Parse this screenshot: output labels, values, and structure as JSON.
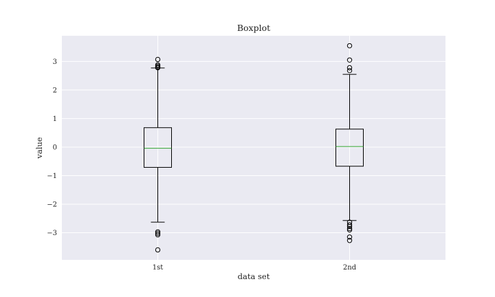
{
  "chart_data": {
    "type": "boxplot",
    "title": "Boxplot",
    "xlabel": "data set",
    "ylabel": "value",
    "categories": [
      "1st",
      "2nd"
    ],
    "ylim": [
      -3.95,
      3.9
    ],
    "yticks": [
      -3,
      -2,
      -1,
      0,
      1,
      2,
      3
    ],
    "ytick_labels": [
      "−3",
      "−2",
      "−1",
      "0",
      "1",
      "2",
      "3"
    ],
    "grid": true,
    "colors": {
      "background": "#eaeaf2",
      "grid": "#ffffff",
      "box": "#000000",
      "median": "#2ca02c"
    },
    "boxes": [
      {
        "label": "1st",
        "whisker_low": -2.63,
        "q1": -0.71,
        "median": -0.04,
        "q3": 0.68,
        "whisker_high": 2.77,
        "outliers": [
          3.07,
          2.88,
          2.84,
          2.8,
          2.78,
          -2.97,
          -3.02,
          -3.07,
          -3.6
        ]
      },
      {
        "label": "2nd",
        "whisker_low": -2.57,
        "q1": -0.67,
        "median": 0.02,
        "q3": 0.63,
        "whisker_high": 2.55,
        "outliers": [
          3.55,
          3.05,
          2.78,
          2.68,
          -2.63,
          -2.72,
          -2.78,
          -2.85,
          -2.9,
          -3.15,
          -3.27
        ]
      }
    ]
  }
}
